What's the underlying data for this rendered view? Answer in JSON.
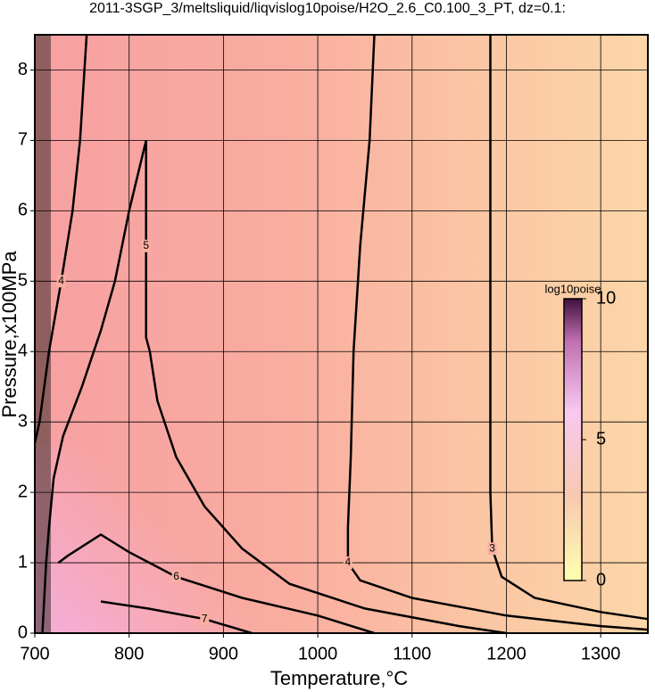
{
  "chart_data": {
    "type": "contour",
    "title": "2011-3SGP_3/meltsliquid/liqvislog10poise/H2O_2.6_C0.100_3_PT, dz=0.1:",
    "x_label": "Temperature,°C",
    "y_label": "Pressure,x100MPa",
    "xlim": [
      700,
      1350
    ],
    "xticks": [
      700,
      800,
      900,
      1000,
      1100,
      1200,
      1300
    ],
    "ylim": [
      0,
      8.5
    ],
    "yticks": [
      0,
      1,
      2,
      3,
      4,
      5,
      6,
      7,
      8
    ],
    "grid": true,
    "contours": [
      {
        "level": 3,
        "x": [
          1183,
          1183,
          1183,
          1183,
          1185,
          1195,
          1230,
          1300,
          1350
        ],
        "y": [
          8.5,
          6,
          4,
          2,
          1.2,
          0.8,
          0.5,
          0.3,
          0.2
        ]
      },
      {
        "level": 4,
        "x": [
          1060,
          1055,
          1045,
          1038,
          1035,
          1032,
          1032,
          1045,
          1100,
          1200,
          1300,
          1350
        ],
        "y": [
          8.5,
          7,
          5.5,
          4,
          2.5,
          1.5,
          1,
          0.75,
          0.5,
          0.25,
          0.1,
          0.05
        ]
      },
      {
        "level": 4,
        "x": [
          755,
          748,
          740,
          728,
          715,
          705,
          700
        ],
        "y": [
          8.5,
          7,
          6,
          5,
          4,
          3,
          2.7
        ]
      },
      {
        "level": 5,
        "x": [
          708,
          710,
          712,
          715,
          720,
          730,
          750,
          770,
          785,
          800,
          818,
          818,
          818,
          822,
          830,
          850,
          880,
          920,
          970,
          1050,
          1150,
          1200
        ],
        "y": [
          0,
          0.5,
          1,
          1.5,
          2.2,
          2.8,
          3.5,
          4.3,
          5,
          6,
          7,
          5.5,
          4.2,
          4,
          3.3,
          2.5,
          1.8,
          1.2,
          0.7,
          0.35,
          0.1,
          0
        ]
      },
      {
        "level": 6,
        "x": [
          725,
          735,
          770,
          800,
          850,
          920,
          1000,
          1060
        ],
        "y": [
          1,
          1.1,
          1.4,
          1.15,
          0.8,
          0.5,
          0.25,
          0
        ]
      },
      {
        "level": 7,
        "x": [
          770,
          820,
          880,
          930
        ],
        "y": [
          0.45,
          0.35,
          0.2,
          0
        ]
      }
    ],
    "colorbar": {
      "label": "log10poise",
      "lim": [
        0,
        10
      ],
      "ticks": [
        0,
        5,
        10
      ]
    }
  }
}
